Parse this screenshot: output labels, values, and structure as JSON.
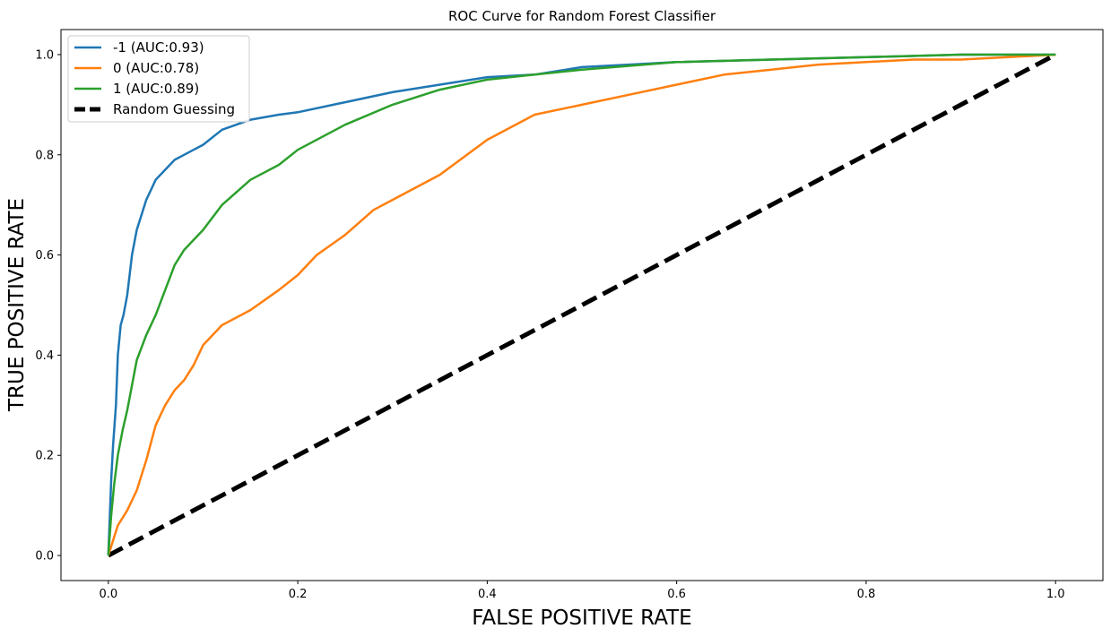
{
  "chart_data": {
    "type": "line",
    "title": "ROC Curve for Random Forest Classifier",
    "xlabel": "FALSE POSITIVE RATE",
    "ylabel": "TRUE POSITIVE RATE",
    "xlim": [
      -0.05,
      1.05
    ],
    "ylim": [
      -0.05,
      1.05
    ],
    "xticks": [
      0.0,
      0.2,
      0.4,
      0.6,
      0.8,
      1.0
    ],
    "xtick_labels": [
      "0.0",
      "0.2",
      "0.4",
      "0.6",
      "0.8",
      "1.0"
    ],
    "yticks": [
      0.0,
      0.2,
      0.4,
      0.6,
      0.8,
      1.0
    ],
    "ytick_labels": [
      "0.0",
      "0.2",
      "0.4",
      "0.6",
      "0.8",
      "1.0"
    ],
    "grid": false,
    "legend_position": "top-left",
    "series": [
      {
        "name": "-1 (AUC:0.93)",
        "color": "#1f77b4",
        "style": "solid",
        "x": [
          0,
          0.003,
          0.005,
          0.008,
          0.01,
          0.013,
          0.016,
          0.02,
          0.025,
          0.03,
          0.035,
          0.04,
          0.045,
          0.05,
          0.06,
          0.07,
          0.08,
          0.09,
          0.1,
          0.12,
          0.15,
          0.18,
          0.2,
          0.25,
          0.3,
          0.35,
          0.4,
          0.45,
          0.5,
          0.55,
          0.6,
          0.7,
          0.8,
          0.9,
          1.0
        ],
        "y": [
          0,
          0.15,
          0.22,
          0.3,
          0.4,
          0.46,
          0.48,
          0.52,
          0.6,
          0.65,
          0.68,
          0.71,
          0.73,
          0.75,
          0.77,
          0.79,
          0.8,
          0.81,
          0.82,
          0.85,
          0.87,
          0.88,
          0.885,
          0.905,
          0.925,
          0.94,
          0.955,
          0.96,
          0.975,
          0.98,
          0.985,
          0.99,
          0.995,
          1.0,
          1.0
        ]
      },
      {
        "name": "0 (AUC:0.78)",
        "color": "#ff7f0e",
        "style": "solid",
        "x": [
          0,
          0.005,
          0.01,
          0.02,
          0.03,
          0.04,
          0.05,
          0.06,
          0.07,
          0.08,
          0.09,
          0.1,
          0.12,
          0.15,
          0.18,
          0.2,
          0.22,
          0.25,
          0.28,
          0.3,
          0.35,
          0.4,
          0.45,
          0.5,
          0.55,
          0.6,
          0.65,
          0.7,
          0.75,
          0.8,
          0.85,
          0.9,
          0.95,
          1.0
        ],
        "y": [
          0,
          0.03,
          0.06,
          0.09,
          0.13,
          0.19,
          0.26,
          0.3,
          0.33,
          0.35,
          0.38,
          0.42,
          0.46,
          0.49,
          0.53,
          0.56,
          0.6,
          0.64,
          0.69,
          0.71,
          0.76,
          0.83,
          0.88,
          0.9,
          0.92,
          0.94,
          0.96,
          0.97,
          0.98,
          0.985,
          0.99,
          0.99,
          0.995,
          1.0
        ]
      },
      {
        "name": "1 (AUC:0.89)",
        "color": "#2ca02c",
        "style": "solid",
        "x": [
          0,
          0.003,
          0.006,
          0.01,
          0.015,
          0.02,
          0.025,
          0.03,
          0.04,
          0.05,
          0.06,
          0.07,
          0.08,
          0.1,
          0.12,
          0.15,
          0.18,
          0.2,
          0.25,
          0.3,
          0.35,
          0.4,
          0.45,
          0.5,
          0.6,
          0.7,
          0.8,
          0.9,
          1.0
        ],
        "y": [
          0,
          0.08,
          0.14,
          0.2,
          0.25,
          0.29,
          0.34,
          0.39,
          0.44,
          0.48,
          0.53,
          0.58,
          0.61,
          0.65,
          0.7,
          0.75,
          0.78,
          0.81,
          0.86,
          0.9,
          0.93,
          0.95,
          0.96,
          0.97,
          0.985,
          0.99,
          0.995,
          1.0,
          1.0
        ]
      },
      {
        "name": "Random Guessing",
        "color": "#000000",
        "style": "dashed",
        "x": [
          0,
          1
        ],
        "y": [
          0,
          1
        ]
      }
    ]
  }
}
